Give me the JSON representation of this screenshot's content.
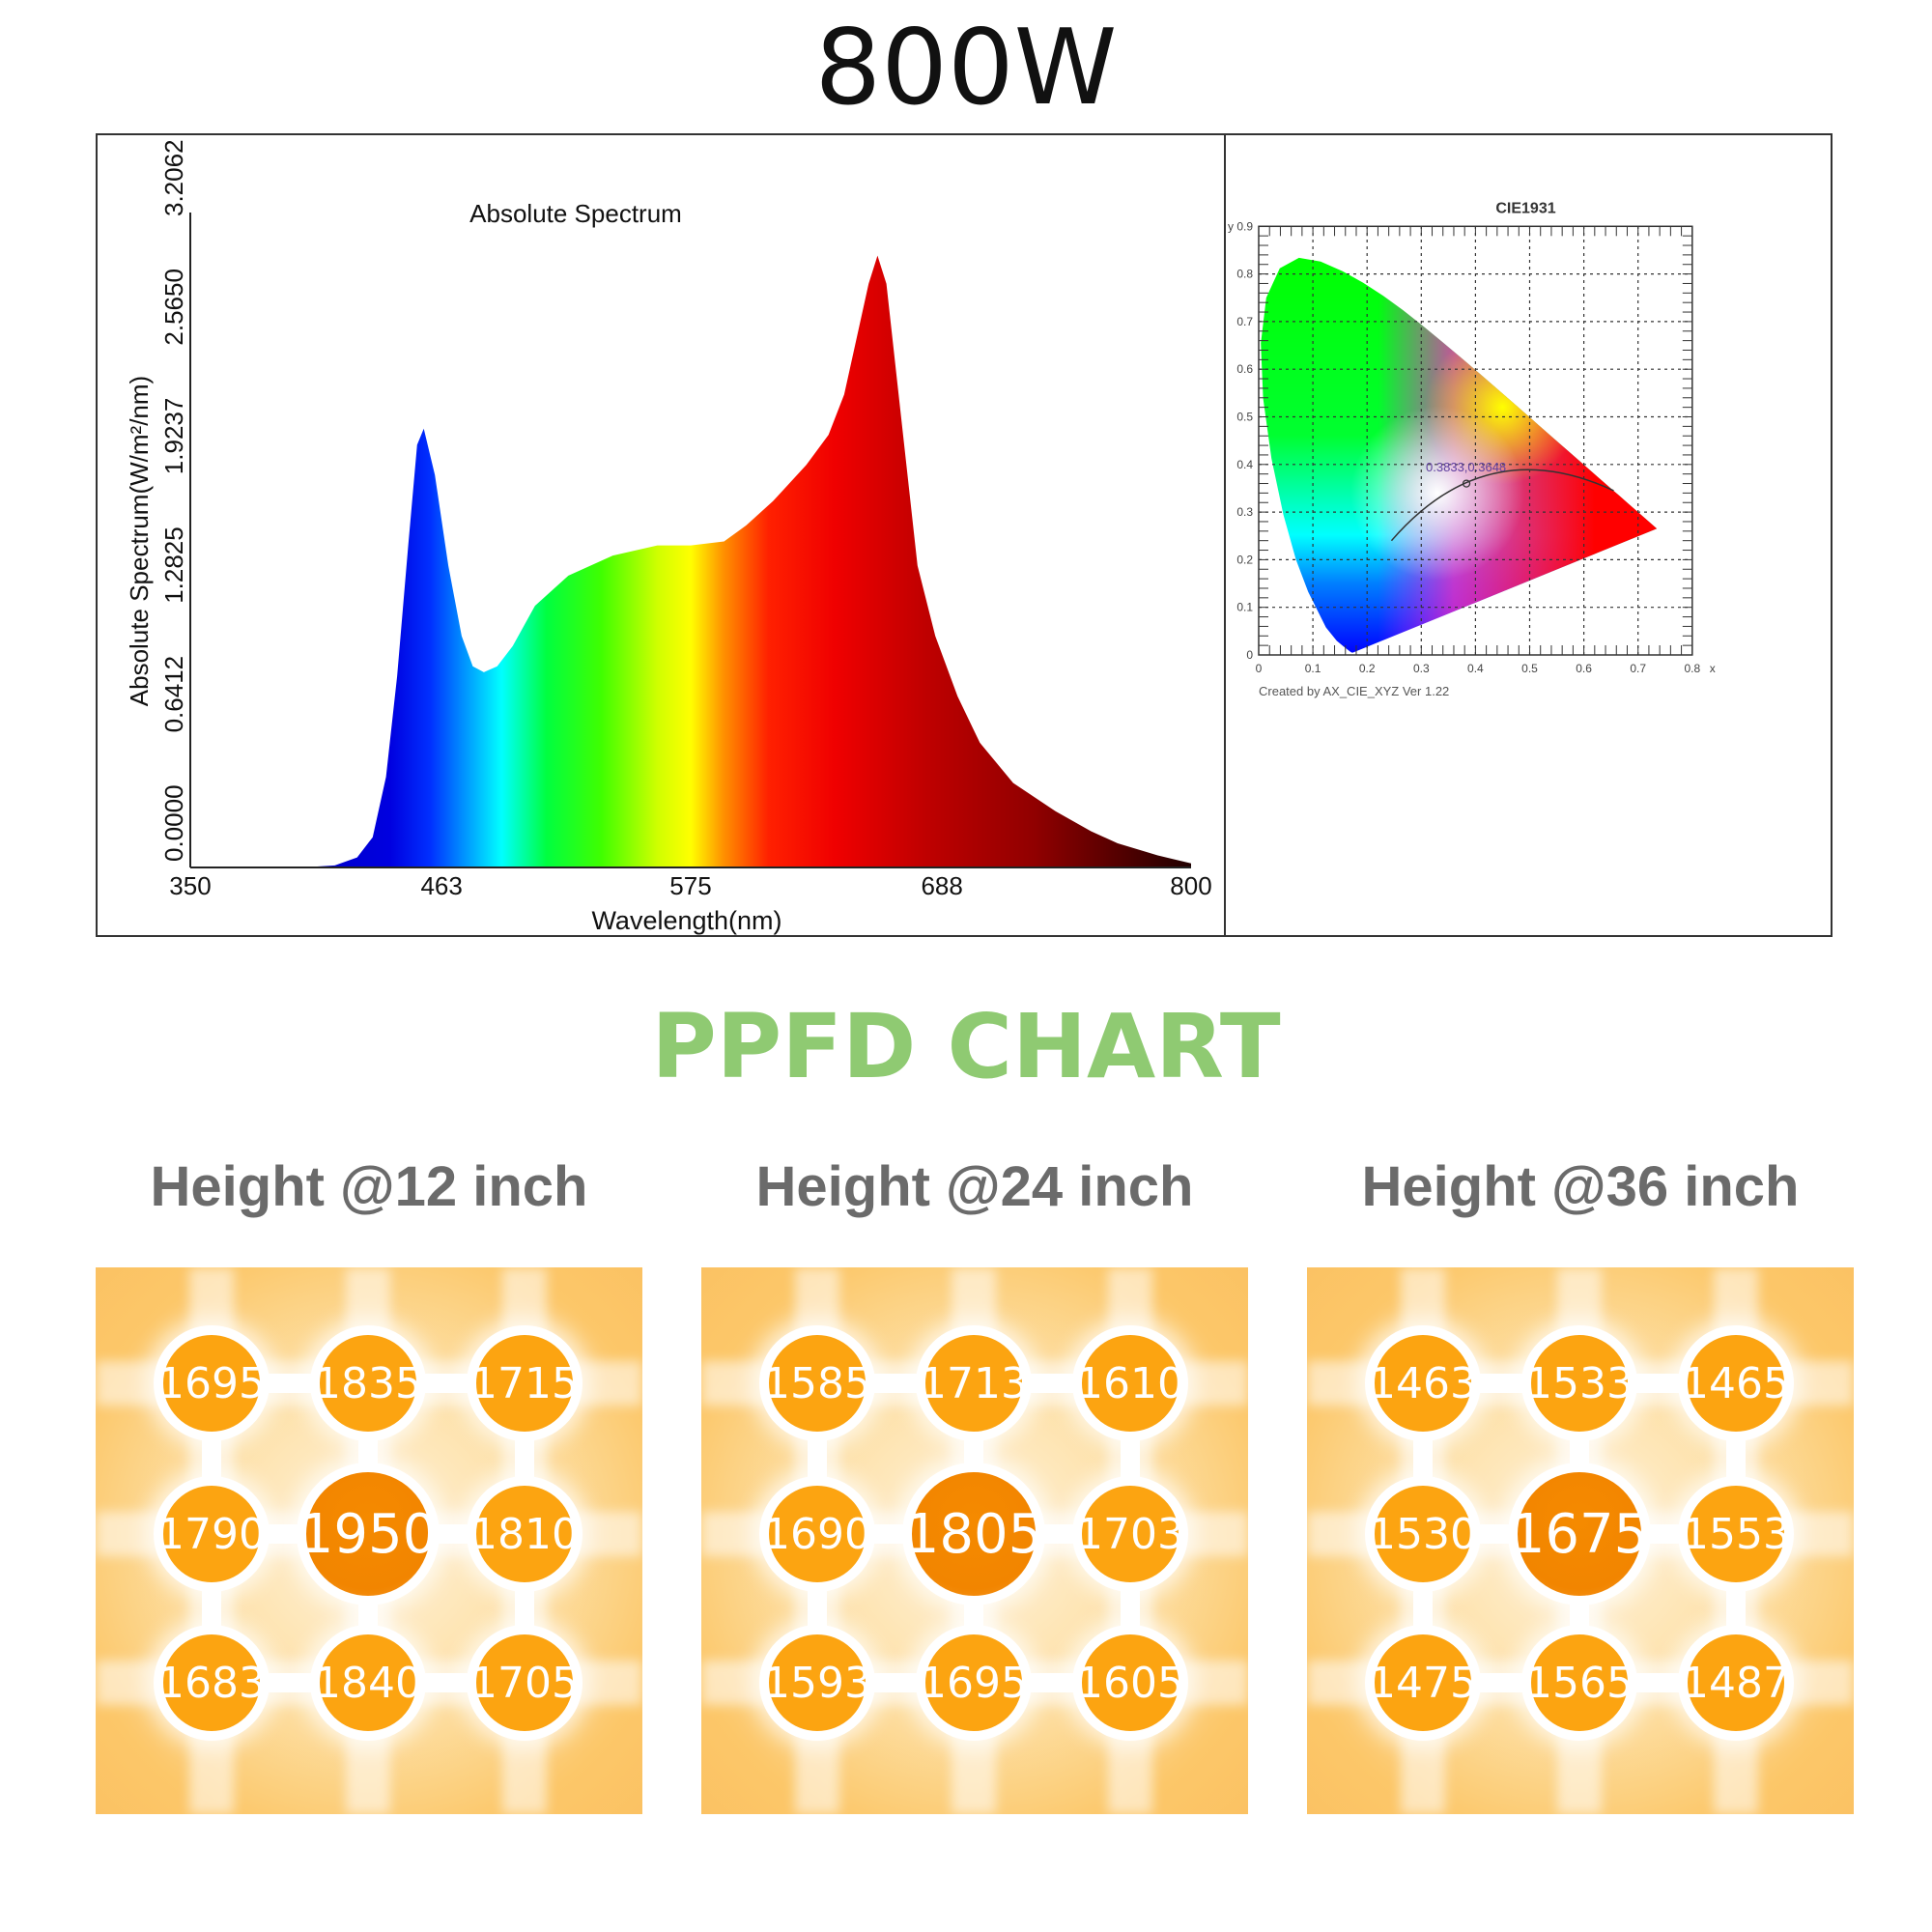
{
  "title": "800W",
  "chart_data": [
    {
      "type": "area",
      "title": "Absolute Spectrum",
      "xlabel": "Wavelength(nm)",
      "ylabel": "Absolute Spectrum(W/m²/nm)",
      "xlim": [
        350,
        800
      ],
      "ylim": [
        0,
        3.2062
      ],
      "x_ticks": [
        "350",
        "463",
        "575",
        "688",
        "800"
      ],
      "y_ticks": [
        "0.0000",
        "0.6412",
        "1.2825",
        "1.9237",
        "2.5650",
        "3.2062"
      ],
      "fill": "visible-spectrum gradient",
      "x": [
        350,
        400,
        415,
        425,
        432,
        438,
        443,
        448,
        452,
        455,
        460,
        466,
        472,
        477,
        482,
        488,
        495,
        505,
        520,
        540,
        560,
        575,
        590,
        600,
        612,
        627,
        637,
        644,
        650,
        655,
        659,
        663,
        668,
        673,
        677,
        685,
        695,
        705,
        720,
        739,
        755,
        767,
        785,
        800
      ],
      "y": [
        0,
        0,
        0.01,
        0.05,
        0.15,
        0.45,
        0.95,
        1.6,
        2.1,
        2.18,
        1.95,
        1.5,
        1.15,
        1.0,
        0.97,
        1.0,
        1.1,
        1.3,
        1.45,
        1.55,
        1.6,
        1.6,
        1.62,
        1.7,
        1.82,
        2.0,
        2.15,
        2.35,
        2.65,
        2.9,
        3.04,
        2.9,
        2.4,
        1.9,
        1.5,
        1.15,
        0.85,
        0.62,
        0.42,
        0.28,
        0.18,
        0.12,
        0.06,
        0.02
      ]
    },
    {
      "type": "scatter",
      "title": "CIE1931",
      "xlabel": "x",
      "ylabel": "y",
      "xlim": [
        0,
        0.8
      ],
      "ylim": [
        0,
        0.9
      ],
      "x_ticks": [
        "0",
        "0.1",
        "0.2",
        "0.3",
        "0.4",
        "0.5",
        "0.6",
        "0.7",
        "0.8"
      ],
      "y_ticks": [
        "0",
        "0.1",
        "0.2",
        "0.3",
        "0.4",
        "0.5",
        "0.6",
        "0.7",
        "0.8",
        "0.9"
      ],
      "grid": true,
      "point": {
        "x": 0.3833,
        "y": 0.3648,
        "label": "0.3833,0.3648"
      },
      "footer": "Created by AX_CIE_XYZ Ver 1.22"
    }
  ],
  "ppfd": {
    "title": "PPFD CHART",
    "panels": [
      {
        "label": "Height @12 inch",
        "values": [
          1695,
          1835,
          1715,
          1790,
          1950,
          1810,
          1683,
          1840,
          1705
        ]
      },
      {
        "label": "Height @24 inch",
        "values": [
          1585,
          1713,
          1610,
          1690,
          1805,
          1703,
          1593,
          1695,
          1605
        ]
      },
      {
        "label": "Height @36 inch",
        "values": [
          1463,
          1533,
          1465,
          1530,
          1675,
          1553,
          1475,
          1565,
          1487
        ]
      }
    ]
  },
  "colors": {
    "ppfd_title": "#8fca72",
    "dot": "#fca411",
    "dot_center": "#f28500",
    "panel": "#fcc769"
  }
}
